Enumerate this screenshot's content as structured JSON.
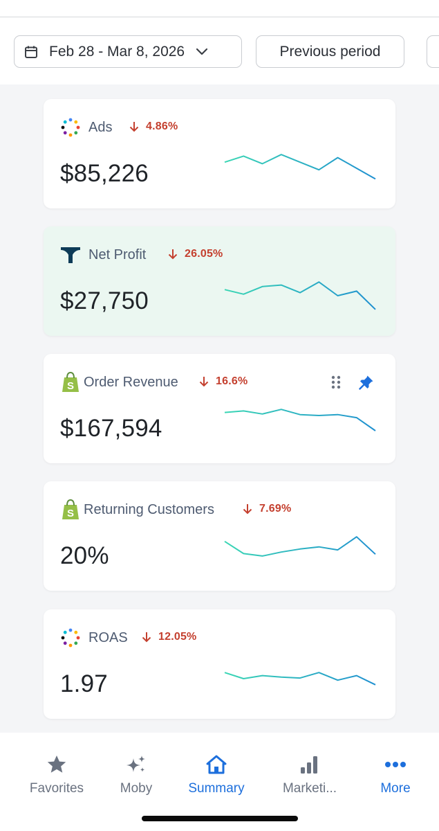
{
  "header": {
    "date_range": "Feb 28 - Mar 8, 2026",
    "compare_label": "Previous period",
    "icons": {
      "calendar": "calendar-icon",
      "dropdown": "chevron-down-icon"
    }
  },
  "colors": {
    "accent": "#1d6fdc",
    "negative": "#c4402f",
    "spark_start": "#3ad6b4",
    "spark_end": "#1e8fd0",
    "highlight_bg": "#ebf7f1"
  },
  "cards": [
    {
      "title": "Ads",
      "delta": "4.86%",
      "direction": "down",
      "value": "$85,226",
      "icon": "multicolor-dots-icon",
      "sparkline": [
        0.3,
        0.1,
        0.35,
        0.05,
        0.3,
        0.55,
        0.15,
        0.5,
        0.85
      ]
    },
    {
      "title": "Net Profit",
      "delta": "26.05%",
      "direction": "down",
      "value": "$27,750",
      "icon": "triple-whale-logo-icon",
      "highlighted": true,
      "sparkline": [
        0.3,
        0.45,
        0.2,
        0.15,
        0.4,
        0.05,
        0.5,
        0.35,
        0.95
      ]
    },
    {
      "title": "Order Revenue",
      "delta": "16.6%",
      "direction": "down",
      "value": "$167,594",
      "icon": "shopify-bag-icon",
      "pinned": true,
      "sparkline": [
        0.15,
        0.1,
        0.2,
        0.05,
        0.22,
        0.25,
        0.22,
        0.32,
        0.75
      ]
    },
    {
      "title": "Returning Customers",
      "delta": "7.69%",
      "direction": "down",
      "value": "20%",
      "icon": "shopify-bag-icon",
      "sparkline": [
        0.2,
        0.6,
        0.68,
        0.55,
        0.45,
        0.38,
        0.48,
        0.05,
        0.62
      ]
    },
    {
      "title": "ROAS",
      "delta": "12.05%",
      "direction": "down",
      "value": "1.97",
      "icon": "multicolor-dots-icon",
      "sparkline": [
        0.3,
        0.5,
        0.4,
        0.45,
        0.48,
        0.3,
        0.55,
        0.4,
        0.7
      ]
    }
  ],
  "nav": [
    {
      "label": "Favorites",
      "icon": "star-icon"
    },
    {
      "label": "Moby",
      "icon": "sparkles-icon"
    },
    {
      "label": "Summary",
      "icon": "home-icon",
      "active": true
    },
    {
      "label": "Marketi...",
      "icon": "bar-chart-icon"
    },
    {
      "label": "More",
      "icon": "more-dots-icon",
      "active": true
    }
  ]
}
